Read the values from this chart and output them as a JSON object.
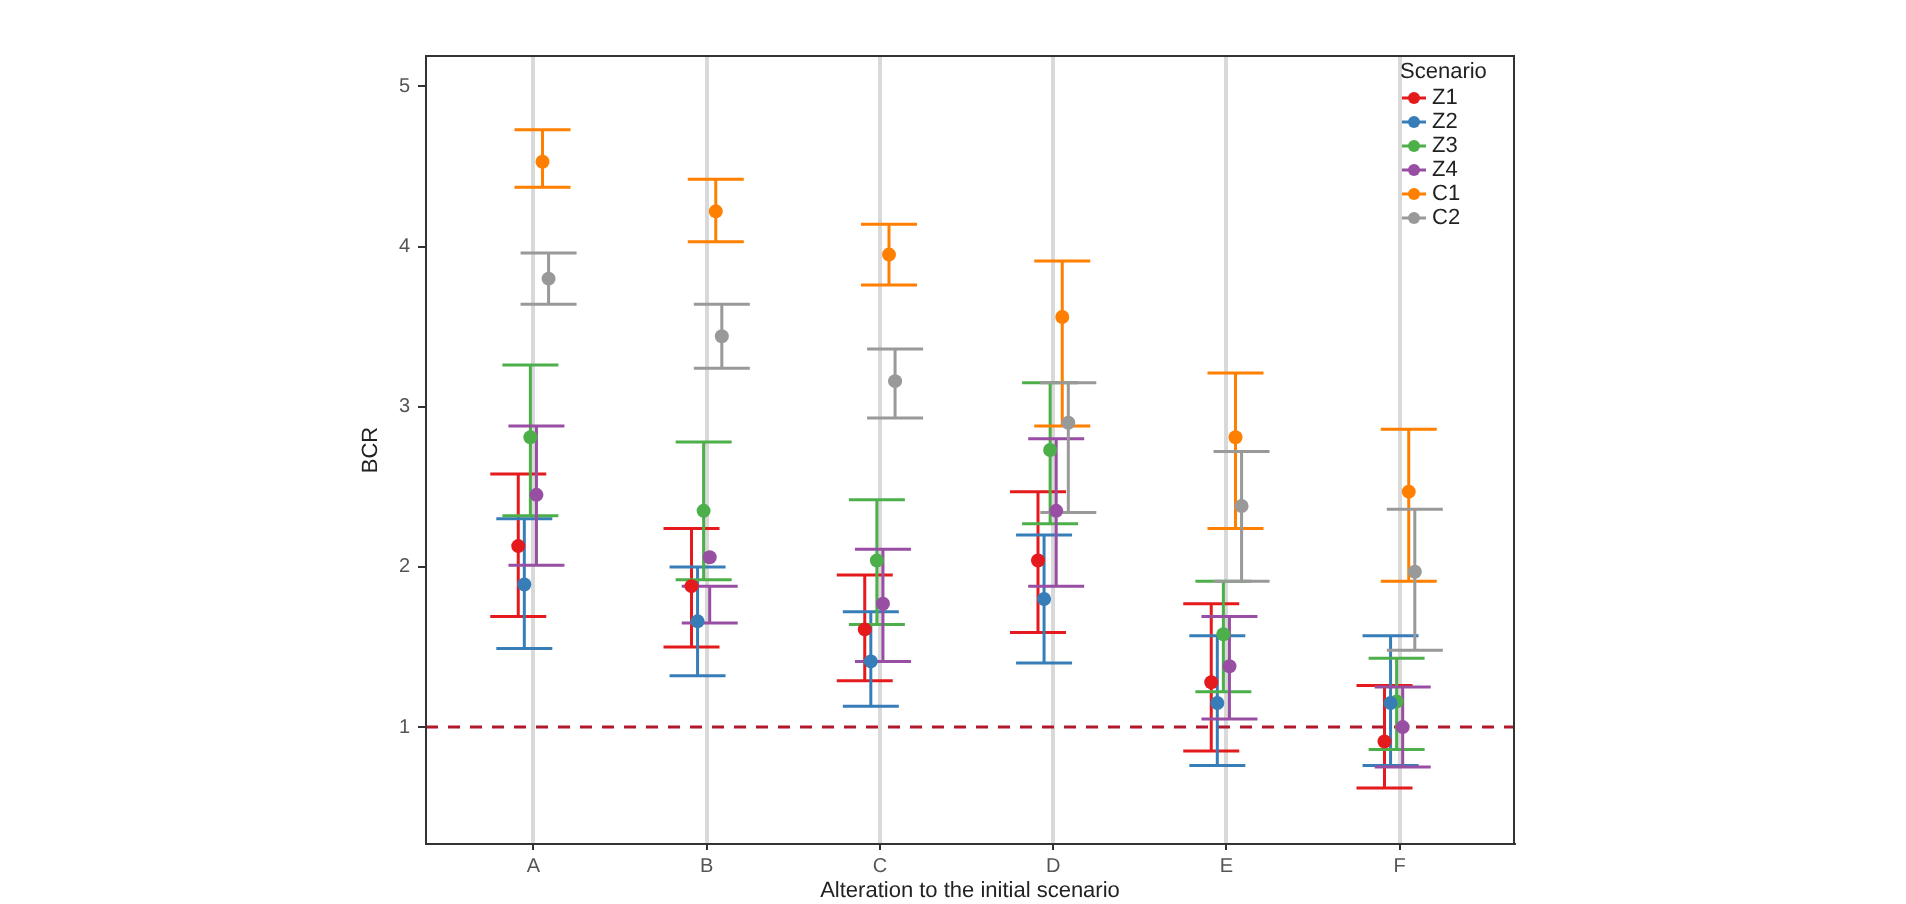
{
  "chart_data": {
    "type": "scatter",
    "xlabel": "Alteration to the initial scenario",
    "ylabel": "BCR",
    "legend_title": "Scenario",
    "categories": [
      "A",
      "B",
      "C",
      "D",
      "E",
      "F"
    ],
    "ylim": [
      0.27,
      5.19
    ],
    "yticks": [
      1,
      2,
      3,
      4,
      5
    ],
    "grid": "x",
    "legend": "top right",
    "marker": "circle",
    "ref_lines": [
      {
        "axis": "y",
        "value": 1,
        "color": "#b2182b",
        "line_style": "dashed"
      }
    ],
    "series": [
      {
        "name": "Z1",
        "color": "#e41a1c",
        "values": [
          2.13,
          1.88,
          1.61,
          2.04,
          1.28,
          0.91
        ],
        "errors": [
          [
            1.69,
            2.58
          ],
          [
            1.5,
            2.24
          ],
          [
            1.29,
            1.95
          ],
          [
            1.59,
            2.47
          ],
          [
            0.85,
            1.77
          ],
          [
            0.62,
            1.26
          ]
        ]
      },
      {
        "name": "Z2",
        "color": "#377eb8",
        "values": [
          1.89,
          1.66,
          1.41,
          1.8,
          1.15,
          1.15
        ],
        "errors": [
          [
            1.49,
            2.3
          ],
          [
            1.32,
            2.0
          ],
          [
            1.13,
            1.72
          ],
          [
            1.4,
            2.2
          ],
          [
            0.76,
            1.57
          ],
          [
            0.76,
            1.57
          ]
        ]
      },
      {
        "name": "Z3",
        "color": "#4daf4a",
        "values": [
          2.81,
          2.35,
          2.04,
          2.73,
          1.58,
          1.16
        ],
        "errors": [
          [
            2.32,
            3.26
          ],
          [
            1.92,
            2.78
          ],
          [
            1.64,
            2.42
          ],
          [
            2.27,
            3.15
          ],
          [
            1.22,
            1.91
          ],
          [
            0.86,
            1.43
          ]
        ]
      },
      {
        "name": "Z4",
        "color": "#984ea3",
        "values": [
          2.45,
          2.06,
          1.77,
          2.35,
          1.38,
          1.0
        ],
        "errors": [
          [
            2.01,
            2.88
          ],
          [
            1.65,
            1.88
          ],
          [
            1.41,
            2.11
          ],
          [
            1.88,
            2.8
          ],
          [
            1.05,
            1.69
          ],
          [
            0.75,
            1.25
          ]
        ]
      },
      {
        "name": "C1",
        "color": "#ff7f00",
        "values": [
          4.53,
          4.22,
          3.95,
          3.56,
          2.81,
          2.47
        ],
        "errors": [
          [
            4.37,
            4.73
          ],
          [
            4.03,
            4.42
          ],
          [
            3.76,
            4.14
          ],
          [
            2.88,
            3.91
          ],
          [
            2.24,
            3.21
          ],
          [
            1.91,
            2.86
          ]
        ]
      },
      {
        "name": "C2",
        "color": "#999999",
        "values": [
          3.8,
          3.44,
          3.16,
          2.9,
          2.38,
          1.97
        ],
        "errors": [
          [
            3.64,
            3.96
          ],
          [
            3.24,
            3.64
          ],
          [
            2.93,
            3.36
          ],
          [
            2.34,
            3.15
          ],
          [
            1.91,
            2.72
          ],
          [
            1.48,
            2.36
          ]
        ]
      }
    ]
  }
}
